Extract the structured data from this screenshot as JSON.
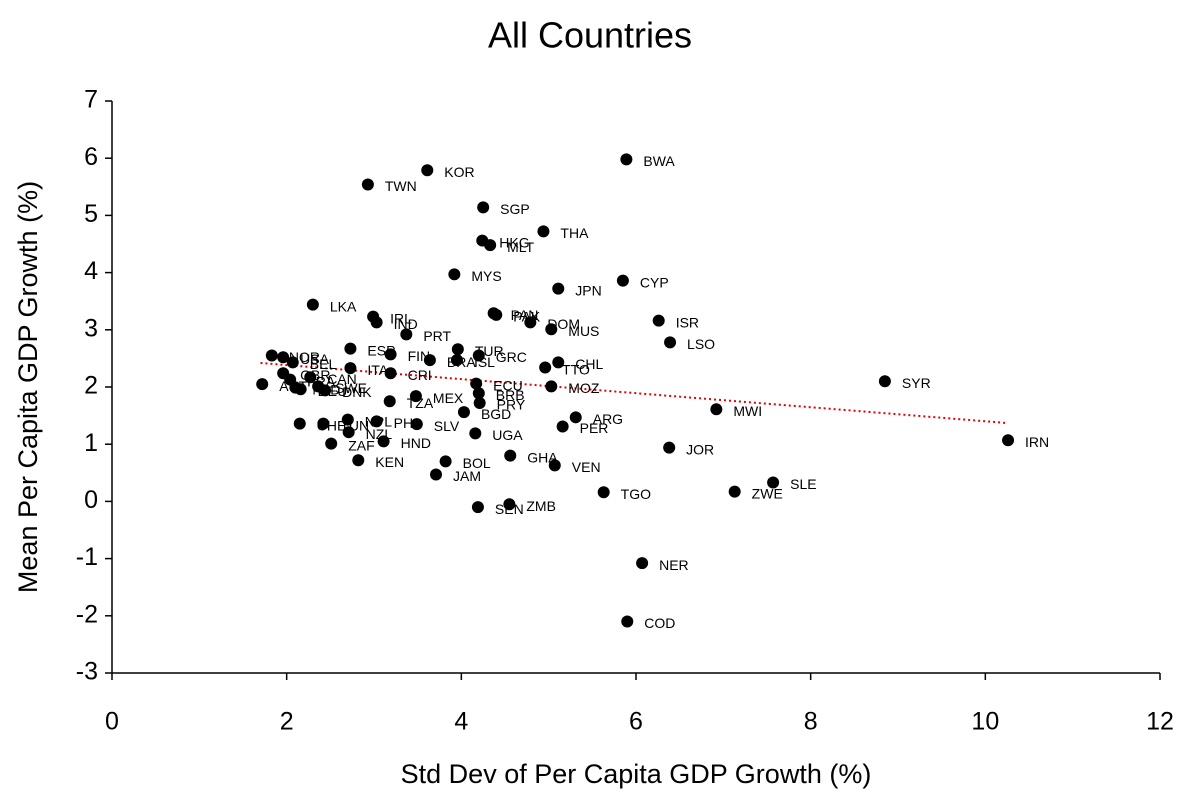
{
  "chart_data": {
    "type": "scatter",
    "title": "All Countries",
    "x_label": "Std Dev of Per Capita GDP Growth (%)",
    "y_label": "Mean Per Capita GDP Growth (%)",
    "point_labels": [
      "BWA",
      "KOR",
      "TWN",
      "SGP",
      "THA",
      "HKG",
      "MLT",
      "MYS",
      "CYP",
      "JPN",
      "LKA",
      "IRL",
      "IND",
      "PAN",
      "PAK",
      "DOM",
      "MUS",
      "ISR",
      "LSO",
      "PRT",
      "ESP",
      "FIN",
      "BRA",
      "ISL",
      "TUR",
      "GRC",
      "CHL",
      "TTO",
      "SYR",
      "MOZ",
      "ECU",
      "BRB",
      "PRY",
      "MWI",
      "ARG",
      "PER",
      "CRI",
      "ITA",
      "MEX",
      "TZA",
      "BGD",
      "SLV",
      "UGA",
      "NPL",
      "PHL",
      "NZL",
      "CHE",
      "TUN",
      "ZAF",
      "HND",
      "KEN",
      "BOL",
      "JAM",
      "GHA",
      "VEN",
      "JOR",
      "IRN",
      "SLE",
      "ZWE",
      "TGO",
      "ZMB",
      "SEN",
      "NER",
      "COD",
      "NOR",
      "USA",
      "BEL",
      "GBR",
      "FRA",
      "AUT",
      "NLD",
      "DEU",
      "CAN",
      "SWE",
      "DNK"
    ],
    "x": [
      5.89,
      3.61,
      2.93,
      4.25,
      4.94,
      4.24,
      4.33,
      3.92,
      5.85,
      5.11,
      2.3,
      2.99,
      3.03,
      4.37,
      4.4,
      4.79,
      5.03,
      6.26,
      6.39,
      3.37,
      2.73,
      3.19,
      3.64,
      3.95,
      3.96,
      4.2,
      5.11,
      4.96,
      8.85,
      5.03,
      4.17,
      4.2,
      4.21,
      6.92,
      5.31,
      5.16,
      3.19,
      2.73,
      3.48,
      3.18,
      4.03,
      3.49,
      4.16,
      2.7,
      3.03,
      2.71,
      2.15,
      2.42,
      2.51,
      3.11,
      2.82,
      3.82,
      3.71,
      4.56,
      5.07,
      6.38,
      10.26,
      7.57,
      7.13,
      5.63,
      4.55,
      4.19,
      6.07,
      5.9,
      1.83,
      1.96,
      2.07,
      1.96,
      2.04,
      1.72,
      2.1,
      2.16,
      2.27,
      2.36,
      2.44
    ],
    "values": [
      5.98,
      5.79,
      5.54,
      5.14,
      4.72,
      4.56,
      4.48,
      3.97,
      3.86,
      3.72,
      3.44,
      3.23,
      3.13,
      3.29,
      3.26,
      3.13,
      3.01,
      3.16,
      2.78,
      2.92,
      2.67,
      2.57,
      2.47,
      2.47,
      2.66,
      2.55,
      2.43,
      2.34,
      2.1,
      2.01,
      2.06,
      1.89,
      1.72,
      1.61,
      1.47,
      1.31,
      2.24,
      2.33,
      1.84,
      1.75,
      1.56,
      1.35,
      1.19,
      1.43,
      1.4,
      1.21,
      1.36,
      1.36,
      1.01,
      1.05,
      0.72,
      0.7,
      0.47,
      0.8,
      0.63,
      0.94,
      1.07,
      0.33,
      0.17,
      0.16,
      -0.05,
      -0.1,
      -1.08,
      -2.1,
      2.55,
      2.52,
      2.43,
      2.24,
      2.13,
      2.05,
      1.99,
      1.96,
      2.17,
      2.01,
      1.94
    ],
    "color": "#000000",
    "trendline": {
      "x": [
        1.7,
        10.25
      ],
      "y": [
        2.42,
        1.37
      ],
      "color": "#e00000"
    },
    "xlim": [
      0,
      12
    ],
    "xticks": [
      0,
      2,
      4,
      6,
      8,
      10,
      12
    ],
    "ylim": [
      -3,
      7
    ],
    "yticks": [
      -3,
      -2,
      -1,
      0,
      1,
      2,
      3,
      4,
      5,
      6,
      7
    ]
  }
}
